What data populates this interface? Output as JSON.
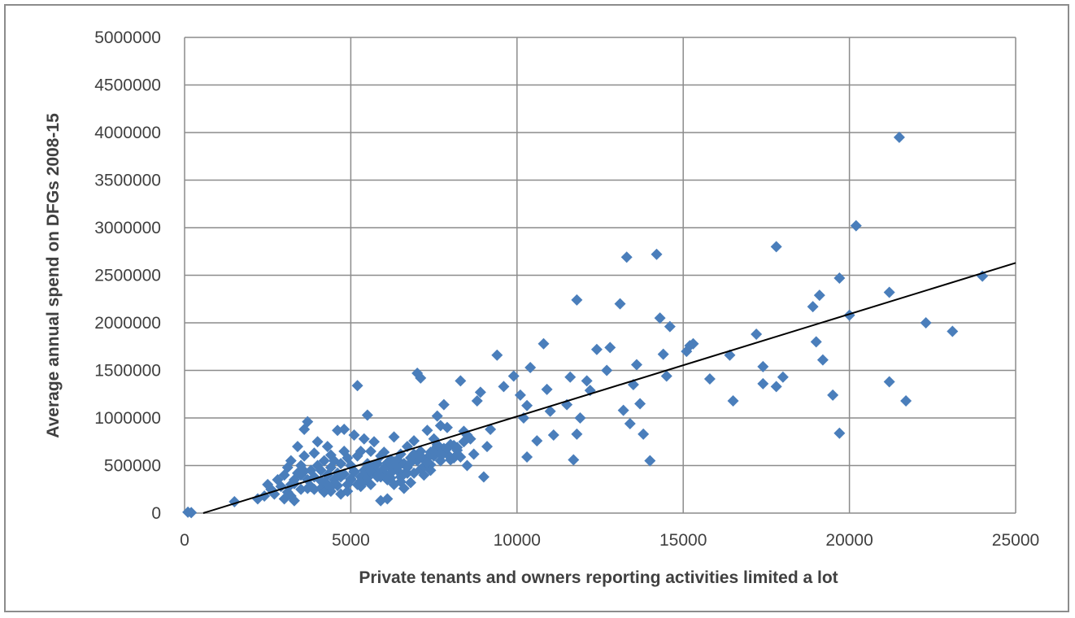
{
  "chart_data": {
    "type": "scatter",
    "title": "",
    "xlabel": "Private tenants and owners reporting activities limited a lot",
    "ylabel": "Average annual spend on DFGs 2008-15",
    "xlim": [
      0,
      25000
    ],
    "ylim": [
      0,
      5000000
    ],
    "x_ticks": [
      "0",
      "5000",
      "10000",
      "15000",
      "20000",
      "25000"
    ],
    "y_ticks": [
      "0",
      "500000",
      "1000000",
      "1500000",
      "2000000",
      "2500000",
      "3000000",
      "3500000",
      "4000000",
      "4500000",
      "5000000"
    ],
    "grid": true,
    "legend": "none",
    "marker": "diamond",
    "marker_color": "#4a7ebb",
    "trendline": {
      "type": "linear",
      "color": "#000000",
      "x": [
        560,
        25000
      ],
      "y": [
        0,
        2630000
      ]
    },
    "series": [
      {
        "x": [
          100,
          200,
          1500,
          2200,
          2400,
          2500,
          2600,
          2700,
          2800,
          2900,
          3000,
          3000,
          3100,
          3100,
          3200,
          3200,
          3300,
          3300,
          3400,
          3400,
          3500,
          3500,
          3600,
          3600,
          3700,
          3700,
          3800,
          3800,
          3900,
          3900,
          4000,
          4000,
          4100,
          4100,
          4200,
          4200,
          4300,
          4300,
          4400,
          4400,
          4500,
          4500,
          4600,
          4600,
          4700,
          4700,
          4800,
          4800,
          4900,
          4900,
          5000,
          5000,
          5100,
          5100,
          5200,
          5200,
          5300,
          5300,
          5400,
          5400,
          5500,
          5500,
          5600,
          5600,
          5700,
          5700,
          5800,
          5800,
          5900,
          5900,
          6000,
          6000,
          6100,
          6100,
          6200,
          6200,
          6300,
          6300,
          6400,
          6400,
          6500,
          6500,
          6600,
          6600,
          6700,
          6700,
          6800,
          6800,
          6900,
          6900,
          7000,
          7000,
          7100,
          7100,
          7200,
          7200,
          7300,
          7300,
          7400,
          7400,
          7500,
          7500,
          7600,
          7600,
          7700,
          7700,
          7800,
          7800,
          7900,
          7900,
          8000,
          8100,
          8200,
          8300,
          8400,
          8500,
          8600,
          8700,
          8800,
          8900,
          9000,
          9100,
          9200,
          9400,
          9600,
          9900,
          10100,
          10200,
          10300,
          10300,
          10400,
          10600,
          10800,
          10900,
          11000,
          11100,
          11500,
          11600,
          11700,
          11800,
          11800,
          11900,
          12100,
          12200,
          12400,
          12700,
          12800,
          13100,
          13200,
          13300,
          13400,
          13500,
          13600,
          13700,
          13800,
          14000,
          14200,
          14300,
          14400,
          14500,
          14600,
          15100,
          15200,
          15300,
          15800,
          16400,
          16500,
          17200,
          17400,
          17400,
          17800,
          17800,
          18000,
          18900,
          19000,
          19100,
          19200,
          19500,
          19700,
          19700,
          20000,
          20200,
          21200,
          21200,
          21500,
          21700,
          22300,
          23100,
          24000,
          3200,
          3300,
          3500,
          3700,
          4100,
          4400,
          4600,
          4800,
          5000,
          5300,
          5600,
          5900,
          6200,
          6500,
          6800,
          7100,
          7400,
          7700,
          8000,
          8300,
          4200,
          4500,
          4700,
          5100,
          5400,
          5700,
          6000,
          6300,
          6600,
          6900,
          7200,
          7500,
          7800,
          8100,
          8400,
          3600,
          3900,
          4300,
          4900,
          5200,
          5500,
          5800,
          6100,
          6400,
          6700,
          7000,
          7300,
          7600,
          7900,
          8200,
          8500,
          6900,
          7100,
          5600,
          6200
        ],
        "y": [
          10000,
          5000,
          120000,
          150000,
          180000,
          300000,
          250000,
          200000,
          350000,
          280000,
          150000,
          400000,
          220000,
          480000,
          300000,
          550000,
          350000,
          130000,
          420000,
          700000,
          500000,
          250000,
          880000,
          600000,
          960000,
          350000,
          450000,
          280000,
          630000,
          380000,
          750000,
          500000,
          260000,
          450000,
          550000,
          320000,
          700000,
          400000,
          610000,
          230000,
          550000,
          350000,
          870000,
          420000,
          520000,
          200000,
          880000,
          650000,
          300000,
          580000,
          500000,
          350000,
          820000,
          430000,
          1340000,
          600000,
          380000,
          650000,
          780000,
          450000,
          1030000,
          520000,
          300000,
          650000,
          420000,
          750000,
          520000,
          380000,
          600000,
          130000,
          640000,
          420000,
          530000,
          150000,
          480000,
          370000,
          800000,
          300000,
          560000,
          450000,
          620000,
          380000,
          520000,
          260000,
          700000,
          480000,
          580000,
          320000,
          760000,
          420000,
          1470000,
          550000,
          1420000,
          650000,
          560000,
          400000,
          870000,
          580000,
          640000,
          450000,
          780000,
          600000,
          1020000,
          700000,
          920000,
          550000,
          1140000,
          680000,
          900000,
          620000,
          720000,
          580000,
          660000,
          1390000,
          860000,
          500000,
          780000,
          620000,
          1180000,
          1270000,
          380000,
          700000,
          880000,
          1660000,
          1330000,
          1440000,
          1240000,
          1000000,
          1130000,
          590000,
          1530000,
          760000,
          1780000,
          1300000,
          1070000,
          820000,
          1140000,
          1430000,
          560000,
          830000,
          2240000,
          1000000,
          1390000,
          1290000,
          1720000,
          1500000,
          1740000,
          2200000,
          1080000,
          2690000,
          940000,
          1350000,
          1560000,
          1150000,
          830000,
          550000,
          2720000,
          2050000,
          1670000,
          1440000,
          1960000,
          1700000,
          1760000,
          1780000,
          1410000,
          1660000,
          1180000,
          1880000,
          1540000,
          1360000,
          1330000,
          2800000,
          1430000,
          2170000,
          1800000,
          2290000,
          1610000,
          1240000,
          2470000,
          840000,
          2080000,
          3020000,
          1380000,
          2320000,
          3950000,
          1180000,
          2000000,
          1910000,
          2490000,
          180000,
          310000,
          400000,
          260000,
          340000,
          480000,
          290000,
          410000,
          360000,
          280000,
          470000,
          380000,
          420000,
          330000,
          530000,
          460000,
          510000,
          620000,
          560000,
          590000,
          220000,
          310000,
          380000,
          440000,
          330000,
          500000,
          470000,
          540000,
          410000,
          600000,
          490000,
          660000,
          630000,
          710000,
          750000,
          440000,
          250000,
          300000,
          230000,
          300000,
          370000,
          430000,
          350000,
          480000,
          420000,
          590000,
          530000,
          720000,
          680000,
          690000,
          820000,
          620000,
          600000,
          440000,
          560000
        ]
      }
    ]
  }
}
